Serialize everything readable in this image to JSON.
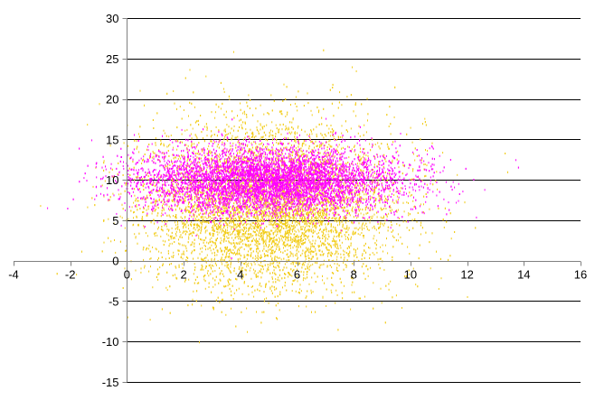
{
  "chart_data": {
    "type": "scatter",
    "title": "",
    "xlabel": "",
    "ylabel": "",
    "xlim": [
      -4,
      16
    ],
    "ylim": [
      -15,
      30
    ],
    "x_ticks": [
      -4,
      -2,
      0,
      2,
      4,
      6,
      8,
      10,
      12,
      14,
      16
    ],
    "y_ticks": [
      -15,
      -10,
      -5,
      0,
      5,
      10,
      15,
      20,
      25,
      30
    ],
    "grid": "horizontal",
    "legend": "none",
    "series": [
      {
        "color": "#F2CC1A",
        "distribution": {
          "x_mean": 5,
          "x_sd": 2.2,
          "y_mean": 7,
          "y_sd": 5,
          "count": 9000
        }
      },
      {
        "color": "#FF00FF",
        "distribution": {
          "x_mean": 5,
          "x_sd": 2.3,
          "y_mean": 10,
          "y_sd": 2,
          "count": 8000
        }
      }
    ]
  }
}
